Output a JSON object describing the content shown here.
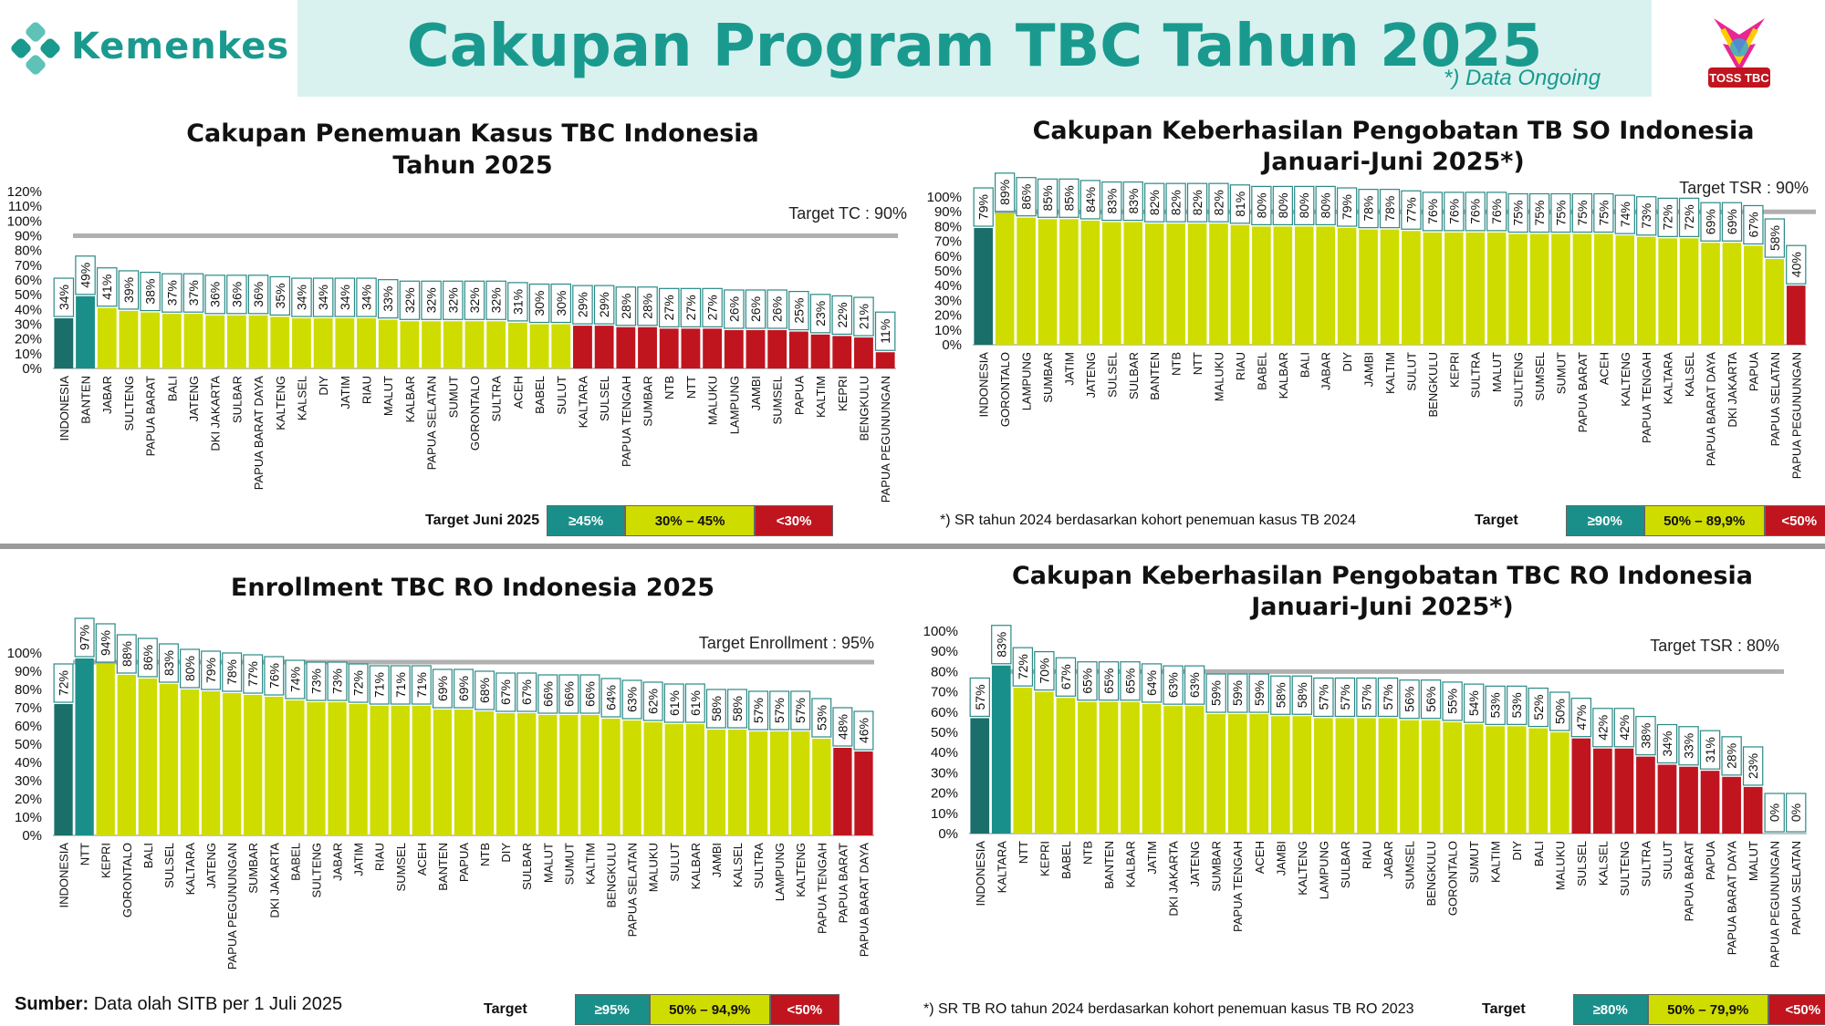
{
  "header": {
    "brand": "Kemenkes",
    "title": "Cakupan Program TBC Tahun 2025",
    "ongoing_note": "*) Data Ongoing",
    "badge_text": "TOSS TBC"
  },
  "colors": {
    "dark_teal": "#1a6f6a",
    "teal": "#1a8f8a",
    "lime": "#cfdc00",
    "red": "#c0151f",
    "target_line": "#b0b0b0"
  },
  "footer": {
    "source_label": "Sumber:",
    "source_text": "Data olah SITB per 1 Juli 2025"
  },
  "legends": [
    {
      "label": "Target Juni 2025",
      "boxes": [
        "≥45%",
        "30% – 45%",
        "<30%"
      ]
    },
    {
      "label": "Target",
      "boxes": [
        "≥90%",
        "50% – 89,9%",
        "<50%"
      ]
    },
    {
      "label": "Target",
      "boxes": [
        "≥95%",
        "50% – 94,9%",
        "<50%"
      ]
    },
    {
      "label": "Target",
      "boxes": [
        "≥80%",
        "50% – 79,9%",
        "<50%"
      ]
    }
  ],
  "notes": [
    "*) SR tahun 2024 berdasarkan kohort penemuan kasus TB 2024",
    "*) SR TB RO tahun 2024 berdasarkan kohort penemuan kasus TB RO 2023"
  ],
  "chart_data": [
    {
      "type": "bar",
      "title": [
        "Cakupan Penemuan Kasus TBC Indonesia",
        "Tahun 2025"
      ],
      "target_label": "Target TC : 90%",
      "target": 90,
      "ylim": [
        0,
        120
      ],
      "yticks": [
        "0%",
        "10%",
        "20%",
        "30%",
        "40%",
        "50%",
        "60%",
        "70%",
        "80%",
        "90%",
        "100%",
        "110%",
        "120%"
      ],
      "categories": [
        "INDONESIA",
        "BANTEN",
        "JABAR",
        "SULTENG",
        "PAPUA BARAT",
        "BALI",
        "JATENG",
        "DKI JAKARTA",
        "SULBAR",
        "PAPUA BARAT DAYA",
        "KALTENG",
        "KALSEL",
        "DIY",
        "JATIM",
        "RIAU",
        "MALUT",
        "KALBAR",
        "PAPUA SELATAN",
        "SUMUT",
        "GORONTALO",
        "SULTRA",
        "ACEH",
        "BABEL",
        "SULUT",
        "KALTARA",
        "SULSEL",
        "PAPUA TENGAH",
        "SUMBAR",
        "NTB",
        "NTT",
        "MALUKU",
        "LAMPUNG",
        "JAMBI",
        "SUMSEL",
        "PAPUA",
        "KALTIM",
        "KEPRI",
        "BENGKULU",
        "PAPUA PEGUNUNGAN"
      ],
      "values": [
        34,
        49,
        41,
        39,
        38,
        37,
        37,
        36,
        36,
        36,
        35,
        34,
        34,
        34,
        34,
        33,
        32,
        32,
        32,
        32,
        32,
        31,
        30,
        30,
        29,
        29,
        28,
        28,
        27,
        27,
        27,
        26,
        26,
        26,
        25,
        23,
        22,
        21,
        11
      ],
      "labels": [
        "34%",
        "49%",
        "41%",
        "39%",
        "38%",
        "37%",
        "37%",
        "36%",
        "36%",
        "36%",
        "35%",
        "34%",
        "34%",
        "34%",
        "34%",
        "33%",
        "32%",
        "32%",
        "32%",
        "32%",
        "32%",
        "31%",
        "30%",
        "30%",
        "29%",
        "29%",
        "28%",
        "28%",
        "27%",
        "27%",
        "27%",
        "26%",
        "26%",
        "26%",
        "25%",
        "23%",
        "22%",
        "21%",
        "11%"
      ],
      "thresholds": [
        45,
        30
      ]
    },
    {
      "type": "bar",
      "title": [
        "Cakupan Keberhasilan Pengobatan TB SO Indonesia",
        "Januari-Juni 2025*)"
      ],
      "target_label": "Target TSR : 90%",
      "target": 90,
      "ylim": [
        0,
        100
      ],
      "yticks": [
        "0%",
        "10%",
        "20%",
        "30%",
        "40%",
        "50%",
        "60%",
        "70%",
        "80%",
        "90%",
        "100%"
      ],
      "categories": [
        "INDONESIA",
        "GORONTALO",
        "LAMPUNG",
        "SUMBAR",
        "JATIM",
        "JATENG",
        "SULSEL",
        "SULBAR",
        "BANTEN",
        "NTB",
        "NTT",
        "MALUKU",
        "RIAU",
        "BABEL",
        "KALBAR",
        "BALI",
        "JABAR",
        "DIY",
        "JAMBI",
        "KALTIM",
        "SULUT",
        "BENGKULU",
        "KEPRI",
        "SULTRA",
        "MALUT",
        "SULTENG",
        "SUMSEL",
        "SUMUT",
        "PAPUA BARAT",
        "ACEH",
        "KALTENG",
        "PAPUA TENGAH",
        "KALTARA",
        "KALSEL",
        "PAPUA BARAT DAYA",
        "DKI JAKARTA",
        "PAPUA",
        "PAPUA SELATAN",
        "PAPUA PEGUNUNGAN"
      ],
      "values": [
        79,
        89,
        86,
        85,
        85,
        84,
        83,
        83,
        82,
        82,
        82,
        82,
        81,
        80,
        80,
        80,
        80,
        79,
        78,
        78,
        77,
        76,
        76,
        76,
        76,
        75,
        75,
        75,
        75,
        75,
        74,
        73,
        72,
        72,
        69,
        69,
        67,
        58,
        40
      ],
      "labels": [
        "79%",
        "89%",
        "86%",
        "85%",
        "85%",
        "84%",
        "83%",
        "83%",
        "82%",
        "82%",
        "82%",
        "82%",
        "81%",
        "80%",
        "80%",
        "80%",
        "80%",
        "79%",
        "78%",
        "78%",
        "77%",
        "76%",
        "76%",
        "76%",
        "76%",
        "75%",
        "75%",
        "75%",
        "75%",
        "75%",
        "74%",
        "73%",
        "72%",
        "72%",
        "69%",
        "69%",
        "67%",
        "58%",
        "40%"
      ],
      "thresholds": [
        90,
        50
      ]
    },
    {
      "type": "bar",
      "title": [
        "Enrollment TBC RO Indonesia 2025"
      ],
      "target_label": "Target Enrollment : 95%",
      "target": 95,
      "ylim": [
        0,
        100
      ],
      "yticks": [
        "0%",
        "10%",
        "20%",
        "30%",
        "40%",
        "50%",
        "60%",
        "70%",
        "80%",
        "90%",
        "100%"
      ],
      "categories": [
        "INDONESIA",
        "NTT",
        "KEPRI",
        "GORONTALO",
        "BALI",
        "SULSEL",
        "KALTARA",
        "JATENG",
        "PAPUA PEGUNUNGAN",
        "SUMBAR",
        "DKI JAKARTA",
        "BABEL",
        "SULTENG",
        "JABAR",
        "JATIM",
        "RIAU",
        "SUMSEL",
        "ACEH",
        "BANTEN",
        "PAPUA",
        "NTB",
        "DIY",
        "SULBAR",
        "MALUT",
        "SUMUT",
        "KALTIM",
        "BENGKULU",
        "PAPUA SELATAN",
        "MALUKU",
        "SULUT",
        "KALBAR",
        "JAMBI",
        "KALSEL",
        "SULTRA",
        "LAMPUNG",
        "KALTENG",
        "PAPUA TENGAH",
        "PAPUA BARAT",
        "PAPUA BARAT DAYA"
      ],
      "values": [
        72,
        97,
        94,
        88,
        86,
        83,
        80,
        79,
        78,
        77,
        76,
        74,
        73,
        73,
        72,
        71,
        71,
        71,
        69,
        69,
        68,
        67,
        67,
        66,
        66,
        66,
        64,
        63,
        62,
        61,
        61,
        58,
        58,
        57,
        57,
        57,
        53,
        48,
        46
      ],
      "labels": [
        "72%",
        "97%",
        "94%",
        "88%",
        "86%",
        "83%",
        "80%",
        "79%",
        "78%",
        "77%",
        "76%",
        "74%",
        "73%",
        "73%",
        "72%",
        "71%",
        "71%",
        "71%",
        "69%",
        "69%",
        "68%",
        "67%",
        "67%",
        "66%",
        "66%",
        "66%",
        "64%",
        "63%",
        "62%",
        "61%",
        "61%",
        "58%",
        "58%",
        "57%",
        "57%",
        "57%",
        "53%",
        "48%",
        "46%"
      ],
      "thresholds": [
        95,
        50
      ]
    },
    {
      "type": "bar",
      "title": [
        "Cakupan Keberhasilan Pengobatan TBC RO Indonesia",
        "Januari-Juni 2025*)"
      ],
      "target_label": "Target TSR : 80%",
      "target": 80,
      "ylim": [
        0,
        100
      ],
      "yticks": [
        "0%",
        "10%",
        "20%",
        "30%",
        "40%",
        "50%",
        "60%",
        "70%",
        "80%",
        "90%",
        "100%"
      ],
      "categories": [
        "INDONESIA",
        "KALTARA",
        "NTT",
        "KEPRI",
        "BABEL",
        "NTB",
        "BANTEN",
        "KALBAR",
        "JATIM",
        "DKI JAKARTA",
        "JATENG",
        "SUMBAR",
        "PAPUA TENGAH",
        "ACEH",
        "JAMBI",
        "KALTENG",
        "LAMPUNG",
        "SULBAR",
        "RIAU",
        "JABAR",
        "SUMSEL",
        "BENGKULU",
        "GORONTALO",
        "SUMUT",
        "KALTIM",
        "DIY",
        "BALI",
        "MALUKU",
        "SULSEL",
        "KALSEL",
        "SULTENG",
        "SULTRA",
        "SULUT",
        "PAPUA BARAT",
        "PAPUA",
        "PAPUA BARAT DAYA",
        "MALUT",
        "PAPUA PEGUNUNGAN",
        "PAPUA SELATAN"
      ],
      "values": [
        57,
        83,
        72,
        70,
        67,
        65,
        65,
        65,
        64,
        63,
        63,
        59,
        59,
        59,
        58,
        58,
        57,
        57,
        57,
        57,
        56,
        56,
        55,
        54,
        53,
        53,
        52,
        50,
        47,
        42,
        42,
        38,
        34,
        33,
        31,
        28,
        23,
        0,
        0
      ],
      "labels": [
        "57%",
        "83%",
        "72%",
        "70%",
        "67%",
        "65%",
        "65%",
        "65%",
        "64%",
        "63%",
        "63%",
        "59%",
        "59%",
        "59%",
        "58%",
        "58%",
        "57%",
        "57%",
        "57%",
        "57%",
        "56%",
        "56%",
        "55%",
        "54%",
        "53%",
        "53%",
        "52%",
        "50%",
        "47%",
        "42%",
        "42%",
        "38%",
        "34%",
        "33%",
        "31%",
        "28%",
        "23%",
        "0%",
        "0%"
      ],
      "thresholds": [
        80,
        50
      ]
    }
  ]
}
